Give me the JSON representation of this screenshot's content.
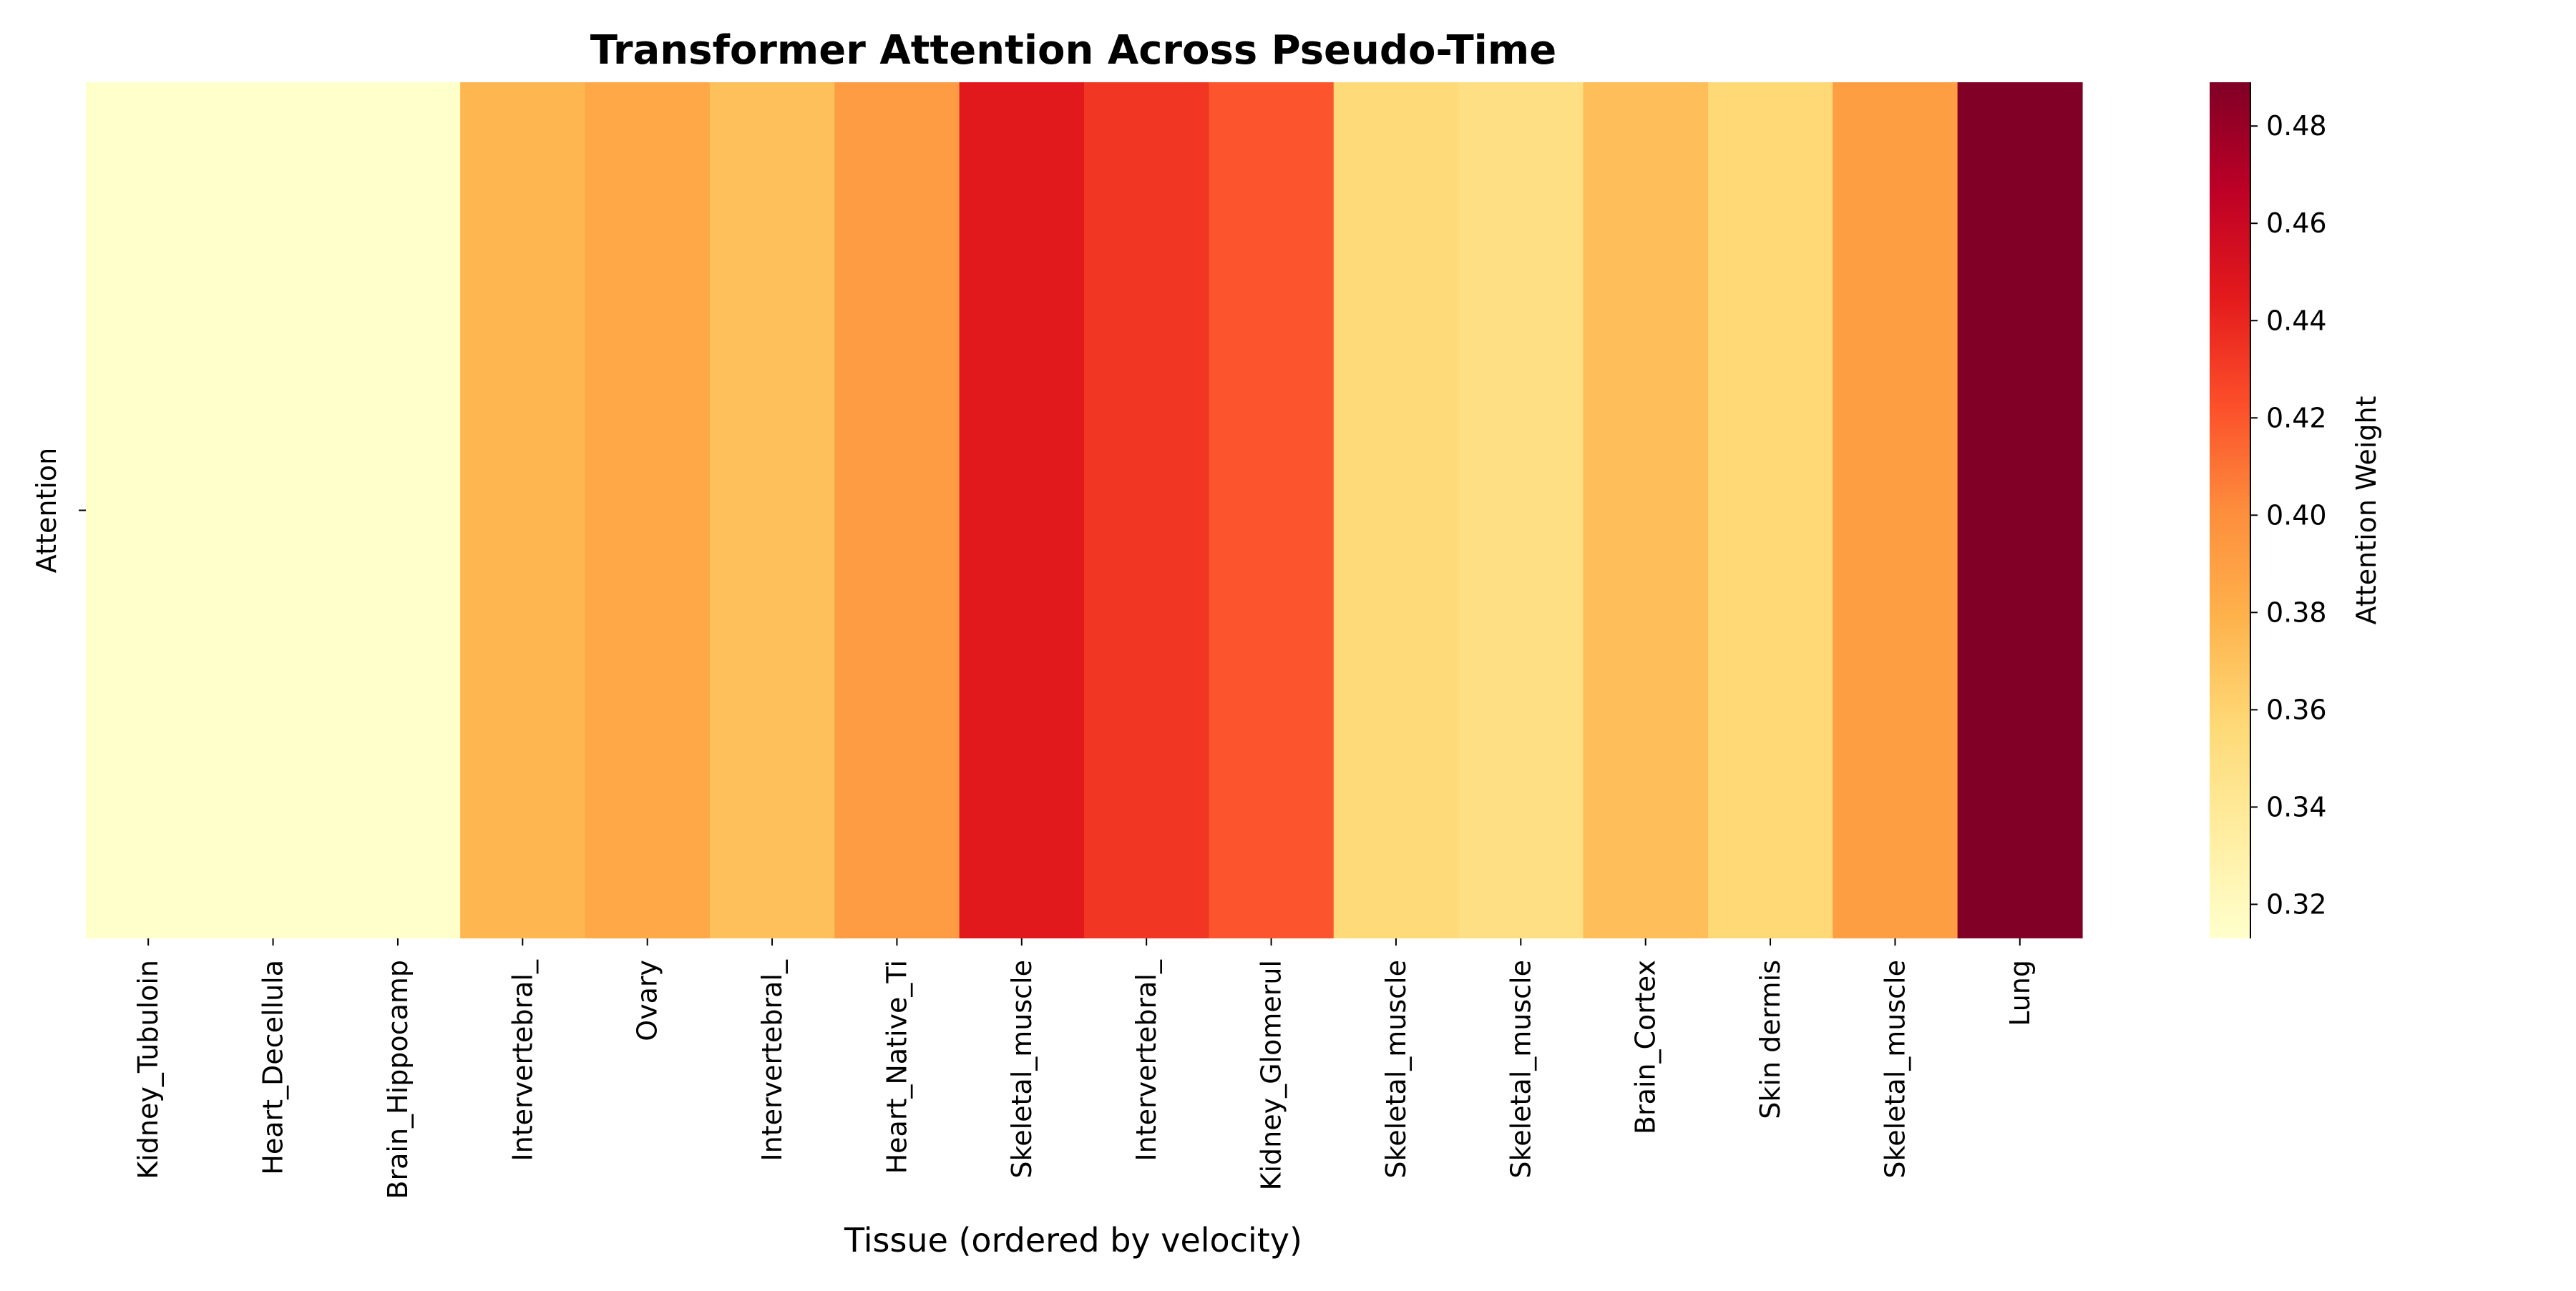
{
  "chart_data": {
    "type": "heatmap",
    "title": "Transformer Attention Across Pseudo-Time",
    "xlabel": "Tissue (ordered by velocity)",
    "ylabel": "",
    "y_categories": [
      "Attention"
    ],
    "categories": [
      "Kidney_Tubuloin",
      "Heart_Decellula",
      "Brain_Hippocamp",
      "Intervertebral_",
      "Ovary",
      "Intervertebral_",
      "Heart_Native_Ti",
      "Skeletal_muscle",
      "Intervertebral_",
      "Kidney_Glomerul",
      "Skeletal_muscle",
      "Skeletal_muscle",
      "Brain_Cortex",
      "Skin dermis",
      "Skeletal_muscle",
      "Lung"
    ],
    "values": [
      0.313,
      0.313,
      0.313,
      0.377,
      0.385,
      0.371,
      0.392,
      0.446,
      0.433,
      0.421,
      0.356,
      0.35,
      0.372,
      0.357,
      0.391,
      0.489
    ],
    "colorbar": {
      "label": "Attention Weight",
      "vmin": 0.313,
      "vmax": 0.489,
      "ticks": [
        0.32,
        0.34,
        0.36,
        0.38,
        0.4,
        0.42,
        0.44,
        0.46,
        0.48
      ],
      "tick_labels": [
        "0.32",
        "0.34",
        "0.36",
        "0.38",
        "0.40",
        "0.42",
        "0.44",
        "0.46",
        "0.48"
      ],
      "colormap": "YlOrRd",
      "colormap_stops": [
        "#ffffcc",
        "#ffeda0",
        "#fed976",
        "#feb24c",
        "#fd8d3c",
        "#fc4e2a",
        "#e31a1c",
        "#bd0026",
        "#800026"
      ]
    }
  }
}
